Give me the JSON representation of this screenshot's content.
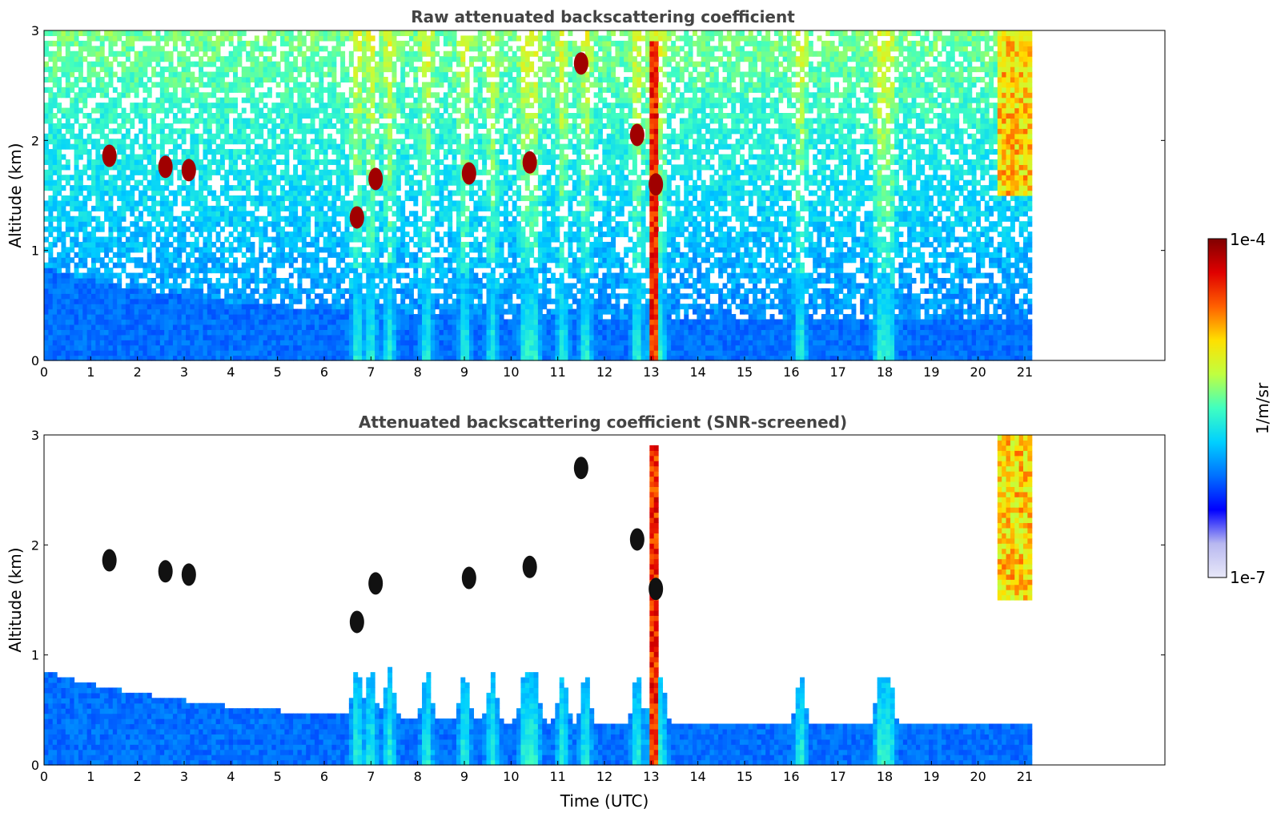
{
  "chart_data": [
    {
      "type": "heatmap",
      "title": "Raw attenuated backscattering coefficient",
      "xlabel": "",
      "ylabel": "Altitude (km)",
      "xlim": [
        0,
        24
      ],
      "ylim": [
        0,
        3
      ],
      "x_ticks": [
        "0",
        "1",
        "2",
        "3",
        "4",
        "5",
        "6",
        "7",
        "8",
        "9",
        "10",
        "11",
        "12",
        "13",
        "14",
        "15",
        "16",
        "17",
        "18",
        "19",
        "20",
        "21"
      ],
      "y_ticks": [
        "0",
        "1",
        "2",
        "3"
      ],
      "data_end_time": 21.15,
      "screened": false,
      "cloud_layers": [
        {
          "time": 1.4,
          "altitude": 1.86
        },
        {
          "time": 2.6,
          "altitude": 1.76
        },
        {
          "time": 3.1,
          "altitude": 1.73
        },
        {
          "time": 6.7,
          "altitude": 1.3
        },
        {
          "time": 7.1,
          "altitude": 1.65
        },
        {
          "time": 9.1,
          "altitude": 1.7
        },
        {
          "time": 10.4,
          "altitude": 1.8
        },
        {
          "time": 11.5,
          "altitude": 2.7
        },
        {
          "time": 12.7,
          "altitude": 2.05
        },
        {
          "time": 13.1,
          "altitude": 1.6
        }
      ]
    },
    {
      "type": "heatmap",
      "title": "Attenuated backscattering coefficient (SNR-screened)",
      "xlabel": "Time (UTC)",
      "ylabel": "Altitude (km)",
      "xlim": [
        0,
        24
      ],
      "ylim": [
        0,
        3
      ],
      "x_ticks": [
        "0",
        "1",
        "2",
        "3",
        "4",
        "5",
        "6",
        "7",
        "8",
        "9",
        "10",
        "11",
        "12",
        "13",
        "14",
        "15",
        "16",
        "17",
        "18",
        "19",
        "20",
        "21"
      ],
      "y_ticks": [
        "0",
        "1",
        "2",
        "3"
      ],
      "data_end_time": 21.15,
      "screened": true
    }
  ],
  "colorbar": {
    "label": "1/m/sr",
    "min_label": "1e-7",
    "max_label": "1e-4",
    "scale": "log",
    "colormap": "jet",
    "colors": [
      "#e8e8f8",
      "#b8b8f0",
      "#0000ff",
      "#0070ff",
      "#00d0ff",
      "#40ffc0",
      "#c0ff40",
      "#ffe000",
      "#ff6000",
      "#e00000",
      "#800000"
    ]
  }
}
